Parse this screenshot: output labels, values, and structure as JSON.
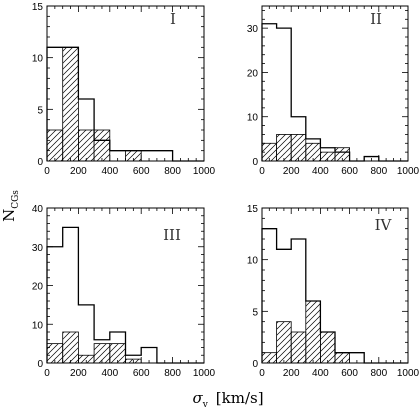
{
  "chart_data": {
    "type": "histogram",
    "ylabel": "N",
    "ylabel_sub": "CGs",
    "xlabel": "σ",
    "xlabel_sub": "v",
    "xlabel_units": "[km/s]",
    "grid": false,
    "hatch_color": "#000000",
    "panels": [
      {
        "label": "I",
        "xlim": [
          0,
          1000
        ],
        "ylim": [
          0,
          15
        ],
        "xticks": [
          "0",
          "200",
          "400",
          "600",
          "800",
          "1000"
        ],
        "yticks": [
          "0",
          "5",
          "10",
          "15"
        ],
        "bin_edges": [
          0,
          100,
          200,
          300,
          400,
          500,
          600,
          700,
          800,
          900,
          1000
        ],
        "open_values": [
          11,
          11,
          6,
          2,
          1,
          1,
          1,
          1,
          0,
          0
        ],
        "hatched_values": [
          3,
          11,
          3,
          3,
          0,
          1,
          0,
          0,
          0,
          0
        ]
      },
      {
        "label": "II",
        "xlim": [
          0,
          1000
        ],
        "ylim": [
          0,
          35
        ],
        "xticks": [
          "0",
          "200",
          "400",
          "600",
          "800",
          "1000"
        ],
        "yticks": [
          "0",
          "10",
          "20",
          "30"
        ],
        "bin_edges": [
          0,
          100,
          200,
          300,
          400,
          500,
          600,
          700,
          800,
          900,
          1000
        ],
        "open_values": [
          31,
          30,
          10,
          5,
          3,
          2,
          0,
          1,
          0,
          0
        ],
        "hatched_values": [
          4,
          6,
          6,
          4,
          2,
          3,
          0,
          0,
          0,
          0
        ]
      },
      {
        "label": "III",
        "xlim": [
          0,
          1000
        ],
        "ylim": [
          0,
          40
        ],
        "xticks": [
          "0",
          "200",
          "400",
          "600",
          "800",
          "1000"
        ],
        "yticks": [
          "0",
          "10",
          "20",
          "30",
          "40"
        ],
        "bin_edges": [
          0,
          100,
          200,
          300,
          400,
          500,
          600,
          700,
          800,
          900,
          1000
        ],
        "open_values": [
          30,
          35,
          15,
          6,
          8,
          2,
          4,
          0,
          0,
          0
        ],
        "hatched_values": [
          5,
          8,
          2,
          5,
          5,
          1,
          0,
          0,
          0,
          0
        ]
      },
      {
        "label": "IV",
        "xlim": [
          0,
          1000
        ],
        "ylim": [
          0,
          15
        ],
        "xticks": [
          "0",
          "200",
          "400",
          "600",
          "800",
          "1000"
        ],
        "yticks": [
          "0",
          "5",
          "10",
          "15"
        ],
        "bin_edges": [
          0,
          100,
          200,
          300,
          400,
          500,
          600,
          700,
          800,
          900,
          1000
        ],
        "open_values": [
          13,
          11,
          12,
          6,
          3,
          1,
          1,
          0,
          0,
          0
        ],
        "hatched_values": [
          1,
          4,
          3,
          6,
          3,
          1,
          0,
          0,
          0,
          0
        ]
      }
    ]
  }
}
